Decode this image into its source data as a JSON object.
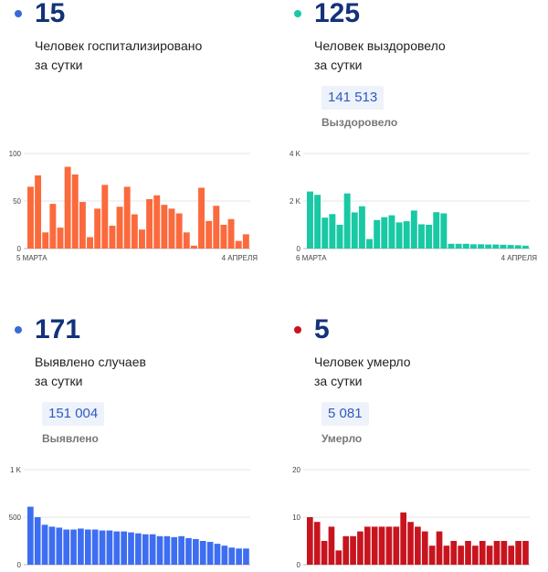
{
  "panels": [
    {
      "id": "hospitalized",
      "count": "15",
      "desc_line1": "Человек госпитализировано",
      "desc_line2": "за сутки",
      "total": "",
      "total_label": "",
      "color": "#fb6a3d",
      "dot_color": "#3a6ad9"
    },
    {
      "id": "recovered",
      "count": "125",
      "desc_line1": "Человек выздоровело",
      "desc_line2": "за сутки",
      "total": "141 513",
      "total_label": "Выздоровело",
      "color": "#18c9a4",
      "dot_color": "#18c9a4"
    },
    {
      "id": "cases",
      "count": "171",
      "desc_line1": "Выявлено случаев",
      "desc_line2": "за сутки",
      "total": "151 004",
      "total_label": "Выявлено",
      "color": "#3d6df0",
      "dot_color": "#3a6ad9"
    },
    {
      "id": "deaths",
      "count": "5",
      "desc_line1": "Человек умерло",
      "desc_line2": "за сутки",
      "total": "5 081",
      "total_label": "Умерло",
      "color": "#c8141e",
      "dot_color": "#c8141e"
    }
  ],
  "chart_data": [
    {
      "type": "bar",
      "panel": "hospitalized",
      "yticks": [
        "0",
        "50",
        "100"
      ],
      "ylim": [
        0,
        100
      ],
      "x_start_label": "5 МАРТА",
      "x_end_label": "4 АПРЕЛЯ",
      "values": [
        65,
        77,
        17,
        47,
        22,
        86,
        78,
        49,
        12,
        42,
        67,
        24,
        44,
        65,
        36,
        20,
        52,
        56,
        46,
        42,
        37,
        17,
        3,
        64,
        29,
        45,
        25,
        31,
        8,
        15
      ]
    },
    {
      "type": "bar",
      "panel": "recovered",
      "yticks": [
        "0",
        "2 K",
        "4 K"
      ],
      "ylim": [
        0,
        4000
      ],
      "x_start_label": "6 МАРТА",
      "x_end_label": "4 АПРЕЛЯ",
      "values": [
        2400,
        2260,
        1300,
        1450,
        1000,
        2320,
        1520,
        1780,
        400,
        1200,
        1320,
        1400,
        1100,
        1150,
        1600,
        1020,
        1000,
        1530,
        1480,
        200,
        200,
        200,
        180,
        180,
        170,
        170,
        160,
        150,
        140,
        120
      ]
    },
    {
      "type": "bar",
      "panel": "cases",
      "yticks": [
        "0",
        "500",
        "1 K"
      ],
      "ylim": [
        0,
        1000
      ],
      "x_start_label": "",
      "x_end_label": "",
      "values": [
        610,
        500,
        420,
        400,
        390,
        370,
        370,
        380,
        370,
        370,
        360,
        360,
        350,
        350,
        340,
        330,
        320,
        320,
        300,
        300,
        290,
        300,
        280,
        270,
        250,
        240,
        220,
        200,
        180,
        170,
        170
      ]
    },
    {
      "type": "bar",
      "panel": "deaths",
      "yticks": [
        "0",
        "10",
        "20"
      ],
      "ylim": [
        0,
        20
      ],
      "x_start_label": "",
      "x_end_label": "",
      "values": [
        10,
        9,
        5,
        8,
        3,
        6,
        6,
        7,
        8,
        8,
        8,
        8,
        8,
        11,
        9,
        8,
        7,
        4,
        7,
        4,
        5,
        4,
        5,
        4,
        5,
        4,
        5,
        5,
        4,
        5,
        5
      ]
    }
  ]
}
